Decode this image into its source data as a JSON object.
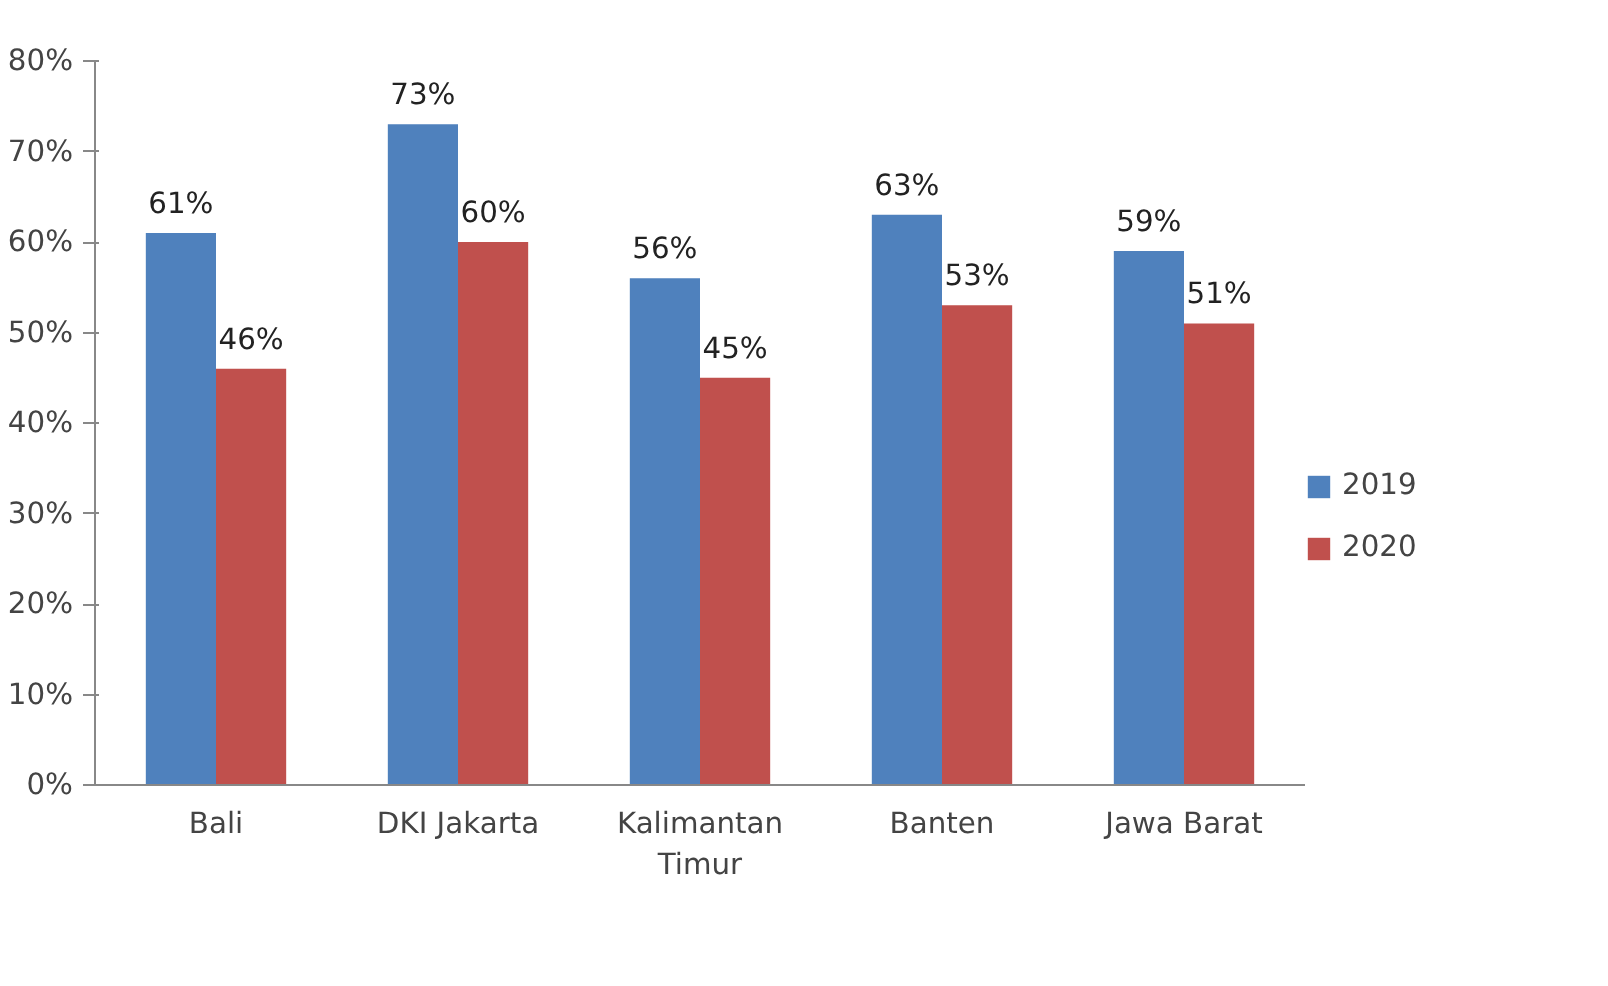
{
  "chart_data": {
    "type": "bar",
    "categories": [
      "Bali",
      "DKI Jakarta",
      "Kalimantan\nTimur",
      "Banten",
      "Jawa Barat"
    ],
    "series": [
      {
        "name": "2019",
        "color": "#4f81bd",
        "values": [
          61,
          73,
          56,
          63,
          59
        ],
        "value_labels": [
          "61%",
          "73%",
          "56%",
          "63%",
          "59%"
        ]
      },
      {
        "name": "2020",
        "color": "#c0504d",
        "values": [
          46,
          60,
          45,
          53,
          51
        ],
        "value_labels": [
          "46%",
          "60%",
          "45%",
          "53%",
          "51%"
        ]
      }
    ],
    "ylim": [
      0,
      80
    ],
    "yticks": [
      {
        "value": 0,
        "label": "0%"
      },
      {
        "value": 10,
        "label": "10%"
      },
      {
        "value": 20,
        "label": "20%"
      },
      {
        "value": 30,
        "label": "30%"
      },
      {
        "value": 40,
        "label": "40%"
      },
      {
        "value": 50,
        "label": "50%"
      },
      {
        "value": 60,
        "label": "60%"
      },
      {
        "value": 70,
        "label": "70%"
      },
      {
        "value": 80,
        "label": "80%"
      }
    ],
    "grid": false,
    "legend": "right"
  }
}
